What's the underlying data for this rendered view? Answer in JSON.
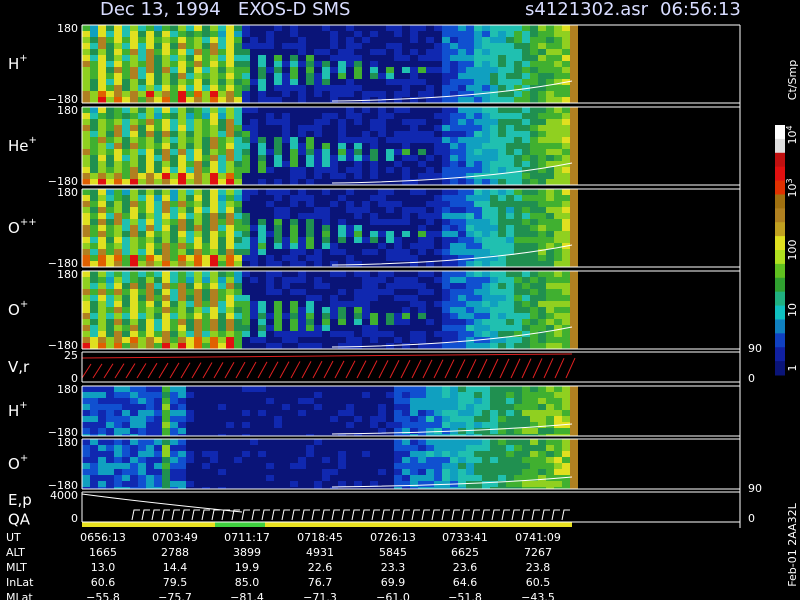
{
  "header": {
    "title": "Dec 13, 1994   EXOS-D SMS",
    "file": "s4121302.asr",
    "time": "06:56:13"
  },
  "panels": [
    {
      "label": "H",
      "sup": "+",
      "top": "180",
      "bottom": "−180"
    },
    {
      "label": "He",
      "sup": "+",
      "top": "180",
      "bottom": "−180"
    },
    {
      "label": "O",
      "sup": "++",
      "top": "180",
      "bottom": "−180"
    },
    {
      "label": "O",
      "sup": "+",
      "top": "180",
      "bottom": "−180"
    },
    {
      "label": "V,r",
      "top": "25",
      "bottom": "0",
      "right_top": "90",
      "right_bottom": "0"
    },
    {
      "label": "H",
      "sup": "+",
      "top": "180",
      "bottom": "−180"
    },
    {
      "label": "O",
      "sup": "+",
      "top": "180",
      "bottom": "−180"
    },
    {
      "label": "E,p",
      "label2": "QA",
      "top": "4000",
      "bottom": "0",
      "right_top": "90",
      "right_bottom": "0"
    }
  ],
  "colorbar": {
    "unit": "Ct/Smp",
    "ticks": [
      {
        "base": "10",
        "exp": "4"
      },
      {
        "base": "10",
        "exp": "3"
      },
      {
        "base": "100"
      },
      {
        "base": "10"
      },
      {
        "base": "1"
      }
    ]
  },
  "table": {
    "rows": [
      {
        "label": "UT",
        "cells": [
          "0656:13",
          "0703:49",
          "0711:17",
          "0718:45",
          "0726:13",
          "0733:41",
          "0741:09"
        ]
      },
      {
        "label": "ALT",
        "cells": [
          "1665",
          "2788",
          "3899",
          "4931",
          "5845",
          "6625",
          "7267"
        ]
      },
      {
        "label": "MLT",
        "cells": [
          "13.0",
          "14.4",
          "19.9",
          "22.6",
          "23.3",
          "23.6",
          "23.8"
        ]
      },
      {
        "label": "InLat",
        "cells": [
          "60.6",
          "79.5",
          "85.0",
          "76.7",
          "69.9",
          "64.6",
          "60.5"
        ]
      },
      {
        "label": "MLat",
        "cells": [
          "−55.8",
          "−75.7",
          "−81.4",
          "−71.3",
          "−61.0",
          "−51.8",
          "−43.5"
        ]
      }
    ]
  },
  "footer": "Feb-01 2AA32L"
}
